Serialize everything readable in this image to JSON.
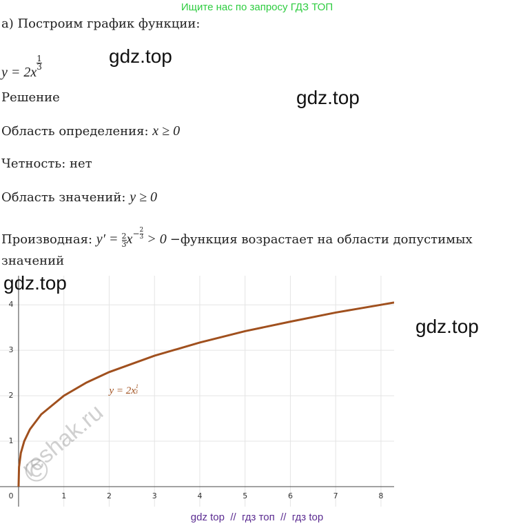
{
  "header": {
    "link": "Ищите нас по запросу ГДЗ ТОП"
  },
  "content": {
    "intro": "а) Построим график функции:",
    "func": {
      "base": "y = 2x",
      "num": "1",
      "den": "3"
    },
    "solution": "Решение",
    "domain": {
      "label": "Область определения: ",
      "math": "x ≥ 0"
    },
    "parity": "Четность: нет",
    "range": {
      "label": "Область значений: ",
      "math": "y ≥ 0"
    },
    "derivative": {
      "label": "Производная: ",
      "lhs": "y′ = ",
      "num": "2",
      "den": "3",
      "base": "x",
      "exp_sign": "−",
      "exp_num": "2",
      "exp_den": "3",
      "rhs": " > 0 ",
      "text": "−функция возрастает на области допустимых",
      "text2": "значений"
    }
  },
  "watermarks": [
    "gdz.top",
    "gdz.top",
    "gdz.top",
    "gdz.top",
    "reshak.ru",
    "©"
  ],
  "chart_data": {
    "type": "line",
    "x": [
      0,
      0.01,
      0.05,
      0.125,
      0.25,
      0.5,
      1,
      1.5,
      2,
      3,
      4,
      5,
      6,
      7,
      8,
      8.29
    ],
    "series": [
      {
        "name": "y = 2x",
        "color": "#a0501e",
        "values": [
          0,
          0.43,
          0.74,
          1.0,
          1.26,
          1.59,
          2,
          2.29,
          2.52,
          2.88,
          3.17,
          3.42,
          3.63,
          3.83,
          4,
          4.05
        ]
      }
    ],
    "annotation_num": "1",
    "annotation_den": "3",
    "xlim": [
      -0.41,
      8.29
    ],
    "ylim": [
      -0.44,
      4.64
    ],
    "xticks": [
      0,
      1,
      2,
      3,
      4,
      5,
      6,
      7,
      8
    ],
    "yticks": [
      1,
      2,
      3,
      4
    ],
    "grid": true
  },
  "footer": "gdz top  //  гдз топ  //  гдз top"
}
